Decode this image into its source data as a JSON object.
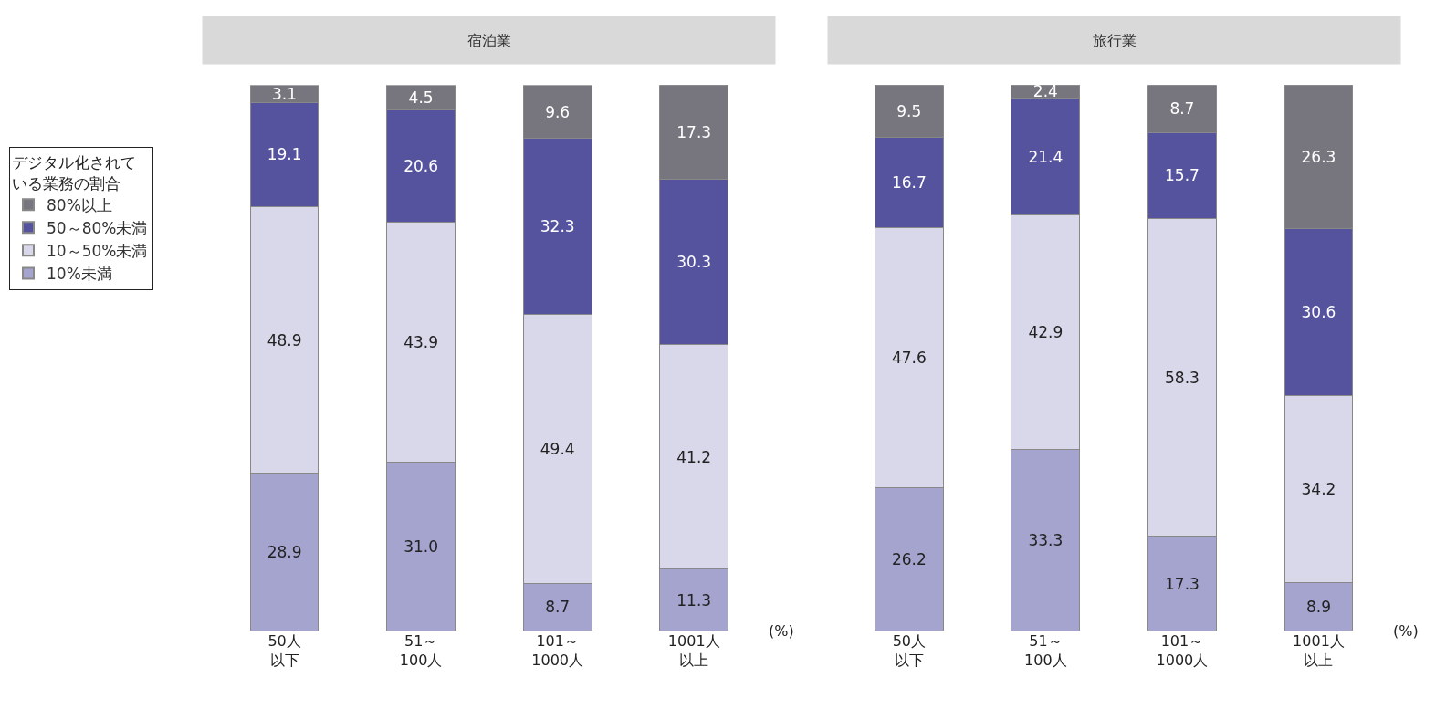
{
  "chart_data": [
    {
      "type": "bar",
      "title": "宿泊業",
      "stacked": true,
      "legend": "left",
      "legend_title": "デジタル化されている業務の割合",
      "tick_labels": "x",
      "categories": [
        "50人以下",
        "51～100人",
        "101～1000人",
        "1001人以上"
      ],
      "annotations": [
        "(%)"
      ],
      "series": [
        {
          "name": "10%未満",
          "color": "#a5a4cf",
          "values": [
            28.9,
            31.0,
            8.7,
            11.3
          ],
          "value_labels": [
            "28.9",
            "31.0",
            "8.7",
            "11.3"
          ]
        },
        {
          "name": "10～50%未満",
          "color": "#d9d8ea",
          "values": [
            48.9,
            43.9,
            49.4,
            41.2
          ],
          "value_labels": [
            "48.9",
            "43.9",
            "49.4",
            "41.2"
          ]
        },
        {
          "name": "50～80%未満",
          "color": "#56539e",
          "values": [
            19.1,
            20.6,
            32.3,
            30.3
          ],
          "value_labels": [
            "19.1",
            "20.6",
            "32.3",
            "30.3"
          ]
        },
        {
          "name": "80%以上",
          "color": "#77767e",
          "values": [
            3.1,
            4.5,
            9.6,
            17.3
          ],
          "value_labels": [
            "3.1",
            "4.5",
            "9.6",
            "17.3"
          ]
        }
      ]
    },
    {
      "type": "bar",
      "title": "旅行業",
      "stacked": true,
      "tick_labels": "x",
      "categories": [
        "50人以下",
        "51～100人",
        "101～1000人",
        "1001人以上"
      ],
      "annotations": [
        "(%)"
      ],
      "series": [
        {
          "color": "#a5a4cf",
          "values": [
            26.2,
            33.3,
            17.3,
            8.9
          ],
          "value_labels": [
            "26.2",
            "33.3",
            "17.3",
            "8.9"
          ]
        },
        {
          "color": "#d9d8ea",
          "values": [
            47.6,
            42.9,
            58.3,
            34.2
          ],
          "value_labels": [
            "47.6",
            "42.9",
            "58.3",
            "34.2"
          ]
        },
        {
          "color": "#56539e",
          "values": [
            16.7,
            21.4,
            15.7,
            30.6
          ],
          "value_labels": [
            "16.7",
            "21.4",
            "15.7",
            "30.6"
          ]
        },
        {
          "color": "#77767e",
          "values": [
            9.5,
            2.4,
            8.7,
            26.3
          ],
          "value_labels": [
            "9.5",
            "2.4",
            "8.7",
            "26.3"
          ]
        }
      ]
    }
  ]
}
